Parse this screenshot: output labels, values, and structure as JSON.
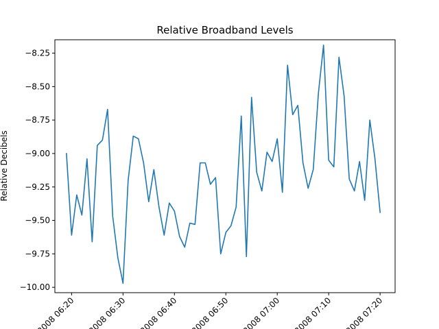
{
  "chart_data": {
    "type": "line",
    "title": "Relative Broadband Levels",
    "xlabel": "",
    "ylabel": "Relative Decibels",
    "ylim": [
      -10.04,
      -8.15
    ],
    "xlim": [
      "2008 06:16:45",
      "2008 07:22:55"
    ],
    "yticks": [
      -10.0,
      -9.75,
      -9.5,
      -9.25,
      -9.0,
      -8.75,
      -8.5,
      -8.25
    ],
    "ytick_labels": [
      "−10.00",
      "−9.75",
      "−9.50",
      "−9.25",
      "−9.00",
      "−8.75",
      "−8.50",
      "−8.25"
    ],
    "xticks": [
      "2008 06:20",
      "2008 06:30",
      "2008 06:40",
      "2008 06:50",
      "2008 07:00",
      "2008 07:10",
      "2008 07:20"
    ],
    "xtick_labels": [
      "2008 06:20",
      "2008 06:30",
      "2008 06:40",
      "2008 06:50",
      "2008 07:00",
      "2008 07:10",
      "2008 07:20"
    ],
    "grid": false,
    "series": [
      {
        "color": "#1f77b4",
        "x": [
          "2008 06:19",
          "2008 06:20",
          "2008 06:21",
          "2008 06:22",
          "2008 06:23",
          "2008 06:24",
          "2008 06:25",
          "2008 06:26",
          "2008 06:27",
          "2008 06:28",
          "2008 06:29",
          "2008 06:30",
          "2008 06:31",
          "2008 06:32",
          "2008 06:33",
          "2008 06:34",
          "2008 06:35",
          "2008 06:36",
          "2008 06:37",
          "2008 06:38",
          "2008 06:39",
          "2008 06:40",
          "2008 06:41",
          "2008 06:42",
          "2008 06:43",
          "2008 06:44",
          "2008 06:45",
          "2008 06:46",
          "2008 06:47",
          "2008 06:48",
          "2008 06:49",
          "2008 06:50",
          "2008 06:51",
          "2008 06:52",
          "2008 06:53",
          "2008 06:54",
          "2008 06:55",
          "2008 06:56",
          "2008 06:57",
          "2008 06:58",
          "2008 06:59",
          "2008 07:00",
          "2008 07:01",
          "2008 07:02",
          "2008 07:03",
          "2008 07:04",
          "2008 07:05",
          "2008 07:06",
          "2008 07:07",
          "2008 07:08",
          "2008 07:09",
          "2008 07:10",
          "2008 07:11",
          "2008 07:12",
          "2008 07:13",
          "2008 07:14",
          "2008 07:15",
          "2008 07:16",
          "2008 07:17",
          "2008 07:18",
          "2008 07:19",
          "2008 07:20"
        ],
        "y": [
          -9.0,
          -9.61,
          -9.31,
          -9.46,
          -9.04,
          -9.66,
          -8.94,
          -8.9,
          -8.67,
          -9.47,
          -9.78,
          -9.97,
          -9.2,
          -8.87,
          -8.89,
          -9.07,
          -9.36,
          -9.12,
          -9.4,
          -9.61,
          -9.37,
          -9.43,
          -9.62,
          -9.7,
          -9.52,
          -9.53,
          -9.07,
          -9.07,
          -9.23,
          -9.18,
          -9.75,
          -9.59,
          -9.54,
          -9.4,
          -8.72,
          -9.77,
          -8.58,
          -9.14,
          -9.28,
          -8.99,
          -9.06,
          -8.89,
          -9.29,
          -8.34,
          -8.71,
          -8.64,
          -9.07,
          -9.26,
          -9.12,
          -8.55,
          -8.19,
          -9.05,
          -9.1,
          -8.28,
          -8.57,
          -9.19,
          -9.28,
          -9.06,
          -9.35,
          -8.75,
          -9.04,
          -9.44
        ]
      }
    ]
  }
}
